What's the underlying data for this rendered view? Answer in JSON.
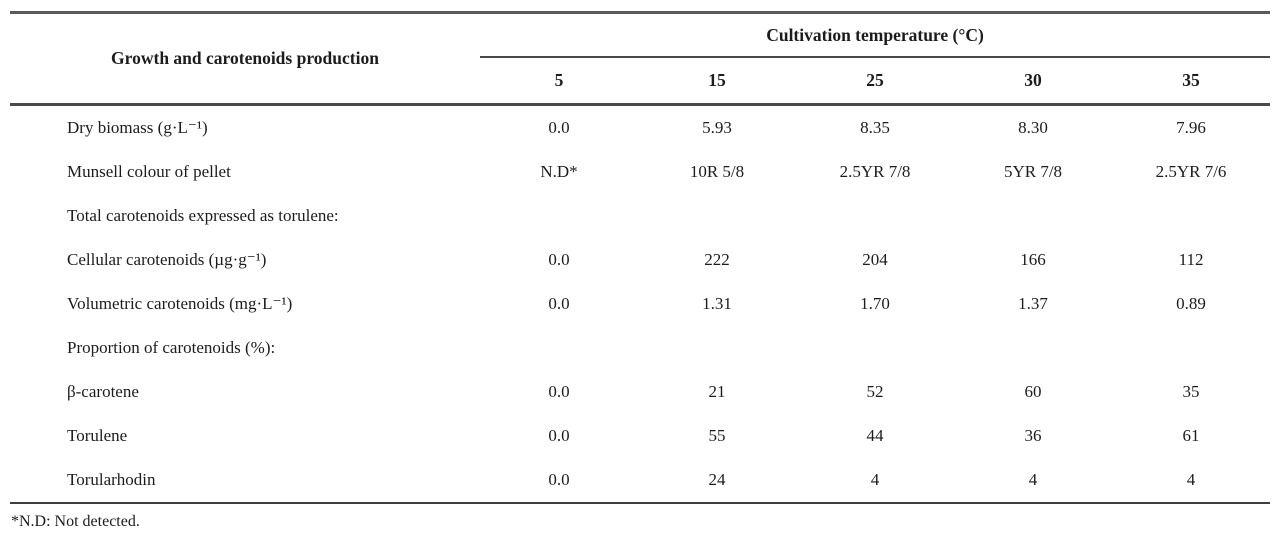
{
  "table": {
    "row_header_title": "Growth and carotenoids production",
    "col_group_title": "Cultivation temperature (°C)",
    "temperature_columns": [
      "5",
      "15",
      "25",
      "30",
      "35"
    ],
    "rows": [
      {
        "label": "Dry biomass (g·L⁻¹)",
        "values": [
          "0.0",
          "5.93",
          "8.35",
          "8.30",
          "7.96"
        ]
      },
      {
        "label": "Munsell colour of pellet",
        "values": [
          "N.D*",
          "10R 5/8",
          "2.5YR 7/8",
          "5YR 7/8",
          "2.5YR 7/6"
        ]
      },
      {
        "label": "Total carotenoids expressed as torulene:",
        "values": [
          "",
          "",
          "",
          "",
          ""
        ]
      },
      {
        "label": "Cellular carotenoids (µg·g⁻¹)",
        "values": [
          "0.0",
          "222",
          "204",
          "166",
          "112"
        ]
      },
      {
        "label": "Volumetric carotenoids (mg·L⁻¹)",
        "values": [
          "0.0",
          "1.31",
          "1.70",
          "1.37",
          "0.89"
        ]
      },
      {
        "label": "Proportion of carotenoids (%):",
        "values": [
          "",
          "",
          "",
          "",
          ""
        ]
      },
      {
        "label": "β-carotene",
        "values": [
          "0.0",
          "21",
          "52",
          "60",
          "35"
        ]
      },
      {
        "label": "Torulene",
        "values": [
          "0.0",
          "55",
          "44",
          "36",
          "61"
        ]
      },
      {
        "label": "Torularhodin",
        "values": [
          "0.0",
          "24",
          "4",
          "4",
          "4"
        ]
      }
    ],
    "footnote": "*N.D: Not detected."
  }
}
